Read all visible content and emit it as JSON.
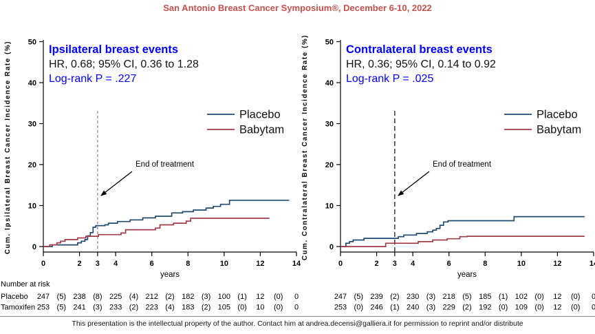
{
  "header": {
    "title": "San Antonio Breast Cancer Symposium®, December 6-10, 2022"
  },
  "footer": {
    "text": "This presentation is the intellectual property of the author. Contact him at andrea.decensi@galliera.it for permission to reprint and/or distribute"
  },
  "palette": {
    "title_red": "#C5514D",
    "accent_blue": "#0000FF",
    "navy": "#1F4A6F",
    "maroon": "#A03C46",
    "axis": "#000000"
  },
  "chart_data": [
    {
      "type": "line",
      "variant": "step",
      "title": "Ipsilateral breast events",
      "hr_text": "HR, 0.68; 95% CI, 0.36 to 1.28",
      "pvalue_text": "Log-rank P = .227",
      "ylabel": "Cum. Ipsilateral Breast Cancer Incidence Rate (%)",
      "xlabel": "years",
      "xlim": [
        0,
        14
      ],
      "ylim": [
        0,
        50
      ],
      "xticks": [
        0,
        2,
        3,
        4,
        6,
        8,
        10,
        12,
        14
      ],
      "yticks": [
        0,
        10,
        20,
        30,
        40,
        50
      ],
      "annotation": {
        "label": "End of treatment",
        "x": 3
      },
      "dashed_line": {
        "x": 3,
        "color": "#8a8a8a",
        "dash": "4,3"
      },
      "legend": [
        "Placebo",
        "Babytam"
      ],
      "legend_position": "center-right",
      "series": [
        {
          "name": "Placebo",
          "color": "#1F4A6F",
          "end": 13.6,
          "steps": [
            [
              0,
              0
            ],
            [
              0.5,
              0.4
            ],
            [
              1.9,
              0.9
            ],
            [
              2.1,
              1.3
            ],
            [
              2.3,
              1.7
            ],
            [
              2.45,
              2.6
            ],
            [
              2.6,
              3.4
            ],
            [
              2.75,
              4.7
            ],
            [
              2.9,
              5.1
            ],
            [
              3.4,
              5.3
            ],
            [
              3.6,
              5.7
            ],
            [
              4.1,
              6.1
            ],
            [
              4.8,
              6.5
            ],
            [
              5.5,
              7.0
            ],
            [
              6.2,
              7.4
            ],
            [
              7.1,
              8.2
            ],
            [
              7.7,
              8.5
            ],
            [
              8.3,
              8.9
            ],
            [
              9.0,
              9.4
            ],
            [
              9.4,
              9.8
            ],
            [
              9.8,
              10.3
            ],
            [
              10.3,
              11.3
            ]
          ]
        },
        {
          "name": "Babytam",
          "color": "#A03C46",
          "end": 12.5,
          "steps": [
            [
              0,
              0
            ],
            [
              0.35,
              0.4
            ],
            [
              0.75,
              0.9
            ],
            [
              0.95,
              1.3
            ],
            [
              1.2,
              1.7
            ],
            [
              1.9,
              2.1
            ],
            [
              2.35,
              2.5
            ],
            [
              3.05,
              2.9
            ],
            [
              4.3,
              3.3
            ],
            [
              4.55,
              4.1
            ],
            [
              6.2,
              4.5
            ],
            [
              6.45,
              5.3
            ],
            [
              7.2,
              5.7
            ],
            [
              7.9,
              6.2
            ],
            [
              8.15,
              6.9
            ]
          ]
        }
      ],
      "risk_table": {
        "header": "Number at risk",
        "value_years": [
          0,
          2,
          4,
          6,
          8,
          10,
          12,
          14
        ],
        "rows": [
          {
            "label": "Placebo",
            "values": [
              "247",
              "238",
              "225",
              "212",
              "182",
              "100",
              "12",
              "0"
            ],
            "events": [
              "(5)",
              "(8)",
              "(4)",
              "(2)",
              "(3)",
              "(1)",
              "(0)"
            ]
          },
          {
            "label": "Tamoxifen",
            "values": [
              "253",
              "241",
              "233",
              "223",
              "183",
              "105",
              "10",
              "0"
            ],
            "events": [
              "(5)",
              "(3)",
              "(2)",
              "(4)",
              "(2)",
              "(0)",
              "(0)"
            ]
          }
        ]
      }
    },
    {
      "type": "line",
      "variant": "step",
      "title": "Contralateral breast events",
      "hr_text": "HR, 0.36; 95% CI, 0.14 to 0.92",
      "pvalue_text": "Log-rank P = .025",
      "ylabel": "Cum. Contralateral Breast Cancer Incidence Rate (%)",
      "xlabel": "years",
      "xlim": [
        0,
        14
      ],
      "ylim": [
        0,
        50
      ],
      "xticks": [
        0,
        2,
        3,
        4,
        6,
        8,
        10,
        12,
        14
      ],
      "yticks": [
        0,
        10,
        20,
        30,
        40,
        50
      ],
      "annotation": {
        "label": "End of treatment",
        "x": 3
      },
      "dashed_line": {
        "x": 3,
        "color": "#1a1a1a",
        "dash": "7,4"
      },
      "legend": [
        "Placebo",
        "Babytam"
      ],
      "legend_position": "center-right",
      "series": [
        {
          "name": "Placebo",
          "color": "#1F4A6F",
          "end": 13.5,
          "steps": [
            [
              0,
              0
            ],
            [
              0.3,
              0.8
            ],
            [
              0.5,
              1.2
            ],
            [
              0.7,
              1.6
            ],
            [
              1.3,
              2.0
            ],
            [
              3.2,
              2.4
            ],
            [
              3.5,
              2.8
            ],
            [
              4.2,
              3.2
            ],
            [
              4.8,
              3.6
            ],
            [
              5.1,
              4.0
            ],
            [
              5.3,
              4.4
            ],
            [
              5.5,
              5.2
            ],
            [
              5.7,
              6.0
            ],
            [
              5.95,
              6.3
            ],
            [
              9.6,
              7.3
            ]
          ]
        },
        {
          "name": "Babytam",
          "color": "#A03C46",
          "end": 13.5,
          "steps": [
            [
              0,
              0
            ],
            [
              2.5,
              0.8
            ],
            [
              4.3,
              1.2
            ],
            [
              5.1,
              1.6
            ],
            [
              5.9,
              1.9
            ],
            [
              6.6,
              2.4
            ],
            [
              7.0,
              2.5
            ]
          ]
        }
      ],
      "risk_table": {
        "value_years": [
          0,
          2,
          4,
          6,
          8,
          10,
          12,
          14
        ],
        "rows": [
          {
            "label": "",
            "values": [
              "247",
              "239",
              "230",
              "218",
              "185",
              "102",
              "12",
              "0"
            ],
            "events": [
              "(5)",
              "(2)",
              "(3)",
              "(5)",
              "(1)",
              "(0)",
              "(0)"
            ]
          },
          {
            "label": "",
            "values": [
              "253",
              "246",
              "240",
              "229",
              "192",
              "109",
              "12",
              "0"
            ],
            "events": [
              "(0)",
              "(1)",
              "(3)",
              "(2)",
              "(0)",
              "(0)",
              "(0)"
            ]
          }
        ]
      }
    }
  ]
}
